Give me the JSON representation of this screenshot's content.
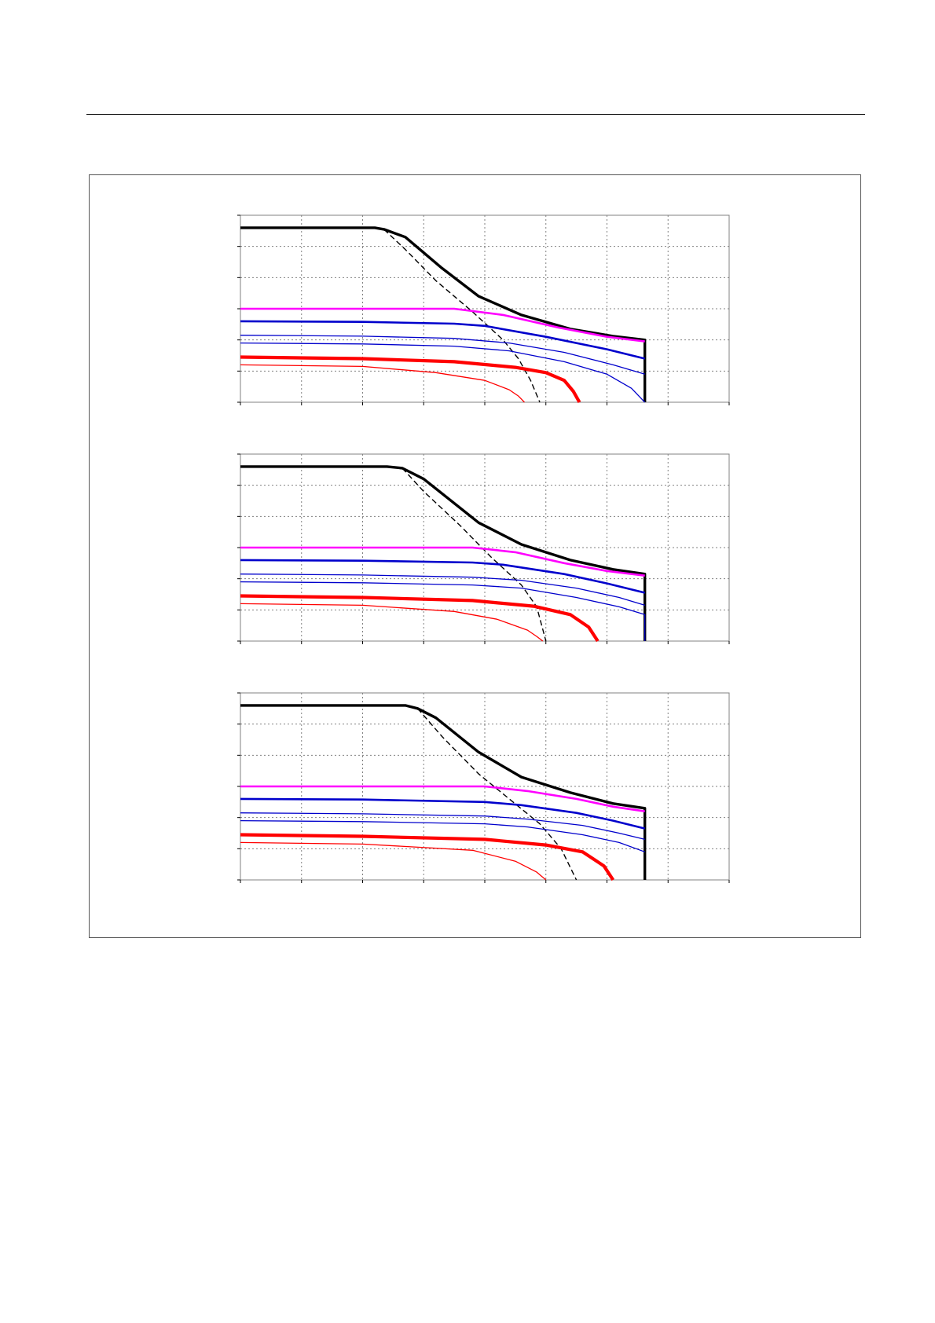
{
  "colors": {
    "max_curve": "#000000",
    "dashed_curve": "#000000",
    "magenta": "#ff00ff",
    "blue": "#0000cc",
    "red": "#ff0000",
    "grid": "#808080",
    "frame": "#555555"
  },
  "chart_data": [
    {
      "type": "line",
      "title": "",
      "xlabel": "",
      "ylabel": "",
      "xlim": [
        0,
        8
      ],
      "ylim": [
        0,
        6
      ],
      "grid": true,
      "series": [
        {
          "color_key": "max_curve",
          "width": 3.4,
          "dash": false,
          "x": [
            0,
            2.2,
            2.35,
            2.7,
            3.3,
            3.9,
            4.6,
            5.4,
            6.1,
            6.62,
            6.62
          ],
          "y": [
            5.6,
            5.6,
            5.55,
            5.3,
            4.3,
            3.4,
            2.8,
            2.35,
            2.12,
            2.0,
            0
          ]
        },
        {
          "color_key": "dashed_curve",
          "width": 1.4,
          "dash": true,
          "x": [
            2.35,
            2.7,
            3.2,
            3.8,
            4.3,
            4.55,
            4.75,
            4.9
          ],
          "y": [
            5.55,
            4.9,
            3.9,
            2.9,
            2.0,
            1.4,
            0.7,
            0
          ]
        },
        {
          "color_key": "magenta",
          "width": 2.6,
          "dash": false,
          "x": [
            0,
            3.5,
            4.3,
            5.2,
            6.0,
            6.62
          ],
          "y": [
            3.0,
            3.0,
            2.8,
            2.4,
            2.1,
            1.95
          ]
        },
        {
          "color_key": "blue",
          "width": 2.6,
          "dash": false,
          "x": [
            0,
            2.0,
            3.5,
            4.0,
            5.0,
            6.0,
            6.62
          ],
          "y": [
            2.6,
            2.58,
            2.52,
            2.45,
            2.1,
            1.7,
            1.4
          ]
        },
        {
          "color_key": "blue",
          "width": 1.3,
          "dash": false,
          "x": [
            0,
            2.0,
            3.5,
            4.4,
            5.3,
            6.1,
            6.62
          ],
          "y": [
            2.15,
            2.12,
            2.05,
            1.9,
            1.6,
            1.2,
            0.9
          ]
        },
        {
          "color_key": "blue",
          "width": 1.3,
          "dash": false,
          "x": [
            0,
            2.0,
            3.5,
            4.4,
            5.3,
            6.0,
            6.4,
            6.62
          ],
          "y": [
            1.9,
            1.87,
            1.8,
            1.65,
            1.3,
            0.9,
            0.45,
            0
          ]
        },
        {
          "color_key": "red",
          "width": 4.2,
          "dash": false,
          "x": [
            0,
            2.0,
            3.5,
            4.5,
            5.0,
            5.3,
            5.45,
            5.55
          ],
          "y": [
            1.45,
            1.4,
            1.3,
            1.12,
            0.95,
            0.7,
            0.35,
            0
          ]
        },
        {
          "color_key": "red",
          "width": 1.3,
          "dash": false,
          "x": [
            0,
            2.0,
            3.2,
            4.0,
            4.4,
            4.55,
            4.65
          ],
          "y": [
            1.2,
            1.15,
            0.95,
            0.7,
            0.4,
            0.2,
            0
          ]
        }
      ]
    },
    {
      "type": "line",
      "title": "",
      "xlabel": "",
      "ylabel": "",
      "xlim": [
        0,
        8
      ],
      "ylim": [
        0,
        6
      ],
      "grid": true,
      "series": [
        {
          "color_key": "max_curve",
          "width": 3.4,
          "dash": false,
          "x": [
            0,
            2.4,
            2.65,
            3.0,
            3.9,
            4.6,
            5.4,
            6.1,
            6.62,
            6.62
          ],
          "y": [
            5.6,
            5.6,
            5.55,
            5.2,
            3.8,
            3.1,
            2.6,
            2.3,
            2.15,
            0
          ]
        },
        {
          "color_key": "dashed_curve",
          "width": 1.4,
          "dash": true,
          "x": [
            2.65,
            3.0,
            3.6,
            4.1,
            4.6,
            4.85,
            5.0
          ],
          "y": [
            5.55,
            4.8,
            3.7,
            2.7,
            1.8,
            1.1,
            0
          ]
        },
        {
          "color_key": "magenta",
          "width": 2.6,
          "dash": false,
          "x": [
            0,
            3.8,
            4.5,
            5.3,
            6.0,
            6.62
          ],
          "y": [
            3.0,
            3.0,
            2.85,
            2.5,
            2.25,
            2.1
          ]
        },
        {
          "color_key": "blue",
          "width": 2.6,
          "dash": false,
          "x": [
            0,
            2.0,
            3.8,
            4.3,
            5.3,
            6.0,
            6.62
          ],
          "y": [
            2.6,
            2.58,
            2.52,
            2.45,
            2.15,
            1.85,
            1.55
          ]
        },
        {
          "color_key": "blue",
          "width": 1.3,
          "dash": false,
          "x": [
            0,
            2.0,
            3.8,
            4.6,
            5.5,
            6.2,
            6.62
          ],
          "y": [
            2.15,
            2.12,
            2.05,
            1.95,
            1.7,
            1.4,
            1.15
          ]
        },
        {
          "color_key": "blue",
          "width": 1.3,
          "dash": false,
          "x": [
            0,
            2.0,
            3.8,
            4.6,
            5.5,
            6.2,
            6.62,
            6.62
          ],
          "y": [
            1.9,
            1.87,
            1.8,
            1.7,
            1.4,
            1.1,
            0.85,
            0
          ]
        },
        {
          "color_key": "red",
          "width": 4.2,
          "dash": false,
          "x": [
            0,
            2.0,
            3.8,
            4.8,
            5.4,
            5.7,
            5.85
          ],
          "y": [
            1.45,
            1.4,
            1.3,
            1.12,
            0.85,
            0.45,
            0
          ]
        },
        {
          "color_key": "red",
          "width": 1.3,
          "dash": false,
          "x": [
            0,
            2.0,
            3.5,
            4.2,
            4.7,
            4.85,
            4.95
          ],
          "y": [
            1.2,
            1.15,
            0.95,
            0.7,
            0.35,
            0.15,
            0
          ]
        }
      ]
    },
    {
      "type": "line",
      "title": "",
      "xlabel": "",
      "ylabel": "",
      "xlim": [
        0,
        8
      ],
      "ylim": [
        0,
        6
      ],
      "grid": true,
      "series": [
        {
          "color_key": "max_curve",
          "width": 3.4,
          "dash": false,
          "x": [
            0,
            2.7,
            2.9,
            3.2,
            3.9,
            4.6,
            5.4,
            6.1,
            6.62,
            6.62
          ],
          "y": [
            5.6,
            5.6,
            5.5,
            5.2,
            4.1,
            3.3,
            2.8,
            2.45,
            2.3,
            0
          ]
        },
        {
          "color_key": "dashed_curve",
          "width": 1.4,
          "dash": true,
          "x": [
            2.9,
            3.3,
            3.9,
            4.4,
            4.9,
            5.25,
            5.5
          ],
          "y": [
            5.5,
            4.6,
            3.4,
            2.6,
            1.8,
            1.0,
            0
          ]
        },
        {
          "color_key": "magenta",
          "width": 2.6,
          "dash": false,
          "x": [
            0,
            4.0,
            4.7,
            5.5,
            6.1,
            6.62
          ],
          "y": [
            3.0,
            3.0,
            2.85,
            2.6,
            2.35,
            2.2
          ]
        },
        {
          "color_key": "blue",
          "width": 2.6,
          "dash": false,
          "x": [
            0,
            2.0,
            4.0,
            4.6,
            5.5,
            6.1,
            6.62
          ],
          "y": [
            2.6,
            2.58,
            2.5,
            2.4,
            2.15,
            1.9,
            1.65
          ]
        },
        {
          "color_key": "blue",
          "width": 1.3,
          "dash": false,
          "x": [
            0,
            2.0,
            4.0,
            4.7,
            5.6,
            6.2,
            6.62
          ],
          "y": [
            2.15,
            2.12,
            2.05,
            1.95,
            1.75,
            1.5,
            1.3
          ]
        },
        {
          "color_key": "blue",
          "width": 1.3,
          "dash": false,
          "x": [
            0,
            2.0,
            4.0,
            4.7,
            5.6,
            6.2,
            6.62
          ],
          "y": [
            1.9,
            1.87,
            1.8,
            1.7,
            1.45,
            1.2,
            0.9
          ]
        },
        {
          "color_key": "red",
          "width": 4.2,
          "dash": false,
          "x": [
            0,
            2.0,
            4.0,
            5.0,
            5.6,
            5.95,
            6.1
          ],
          "y": [
            1.45,
            1.4,
            1.3,
            1.12,
            0.9,
            0.45,
            0
          ]
        },
        {
          "color_key": "red",
          "width": 1.3,
          "dash": false,
          "x": [
            0,
            2.0,
            3.8,
            4.5,
            4.85,
            5.0
          ],
          "y": [
            1.2,
            1.15,
            0.95,
            0.6,
            0.25,
            0
          ]
        }
      ]
    }
  ]
}
